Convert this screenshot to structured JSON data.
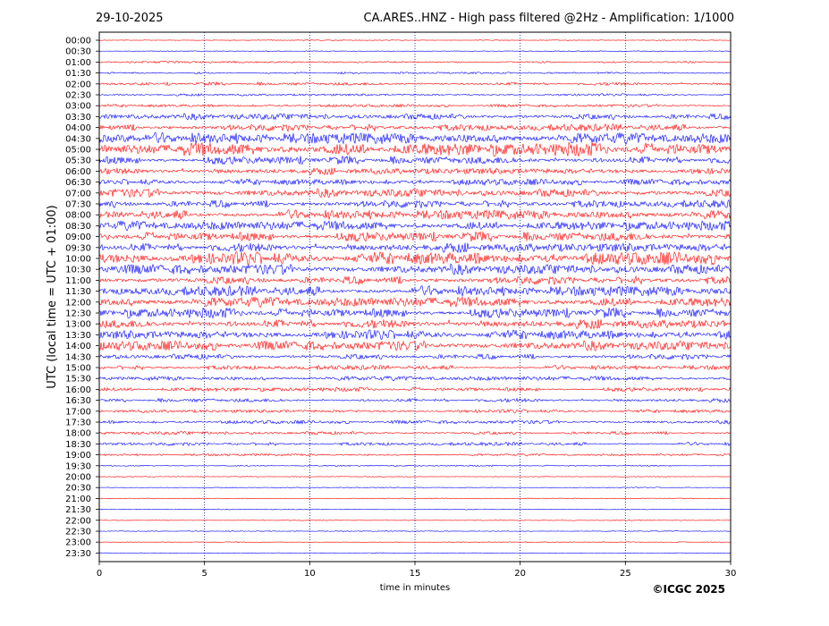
{
  "header": {
    "date": "29-10-2025",
    "title": "CA.ARES..HNZ - High pass filtered @2Hz - Amplification: 1/1000"
  },
  "footer": {
    "copyright": "©ICGC 2025"
  },
  "colors": {
    "trace_a": "#ff0000",
    "trace_b": "#0000ff",
    "grid": "#000080",
    "axis": "#000000"
  },
  "chart_data": {
    "type": "line",
    "xlabel": "time in minutes",
    "ylabel": "UTC (local time = UTC + 01:00)",
    "xlim": [
      0,
      30
    ],
    "x_ticks": [
      0,
      5,
      10,
      15,
      20,
      25,
      30
    ],
    "grid": "vertical dotted lines at every 5 minutes",
    "row_labels": [
      "00:00",
      "00:30",
      "01:00",
      "01:30",
      "02:00",
      "02:30",
      "03:00",
      "03:30",
      "04:00",
      "04:30",
      "05:00",
      "05:30",
      "06:00",
      "06:30",
      "07:00",
      "07:30",
      "08:00",
      "08:30",
      "09:00",
      "09:30",
      "10:00",
      "10:30",
      "11:00",
      "11:30",
      "12:00",
      "12:30",
      "13:00",
      "13:30",
      "14:00",
      "14:30",
      "15:00",
      "15:30",
      "16:00",
      "16:30",
      "17:00",
      "17:30",
      "18:00",
      "18:30",
      "19:00",
      "19:30",
      "20:00",
      "20:30",
      "21:00",
      "21:30",
      "22:00",
      "22:30",
      "23:00",
      "23:30"
    ],
    "row_colors": [
      "red",
      "blue",
      "red",
      "blue",
      "red",
      "blue",
      "red",
      "blue",
      "red",
      "blue",
      "red",
      "blue",
      "red",
      "blue",
      "red",
      "blue",
      "red",
      "blue",
      "red",
      "blue",
      "red",
      "blue",
      "red",
      "blue",
      "red",
      "blue",
      "red",
      "blue",
      "red",
      "blue",
      "red",
      "blue",
      "red",
      "blue",
      "red",
      "blue",
      "red",
      "blue",
      "red",
      "blue",
      "red",
      "blue",
      "red",
      "blue",
      "red",
      "blue",
      "red",
      "blue"
    ],
    "relative_amplitude": [
      0.3,
      0.3,
      0.7,
      0.7,
      1.2,
      0.8,
      1.0,
      2.2,
      2.5,
      4.0,
      5.0,
      3.0,
      2.4,
      2.2,
      3.0,
      2.8,
      3.4,
      3.4,
      3.6,
      3.4,
      4.6,
      3.6,
      3.0,
      3.6,
      3.6,
      3.6,
      3.4,
      3.4,
      3.4,
      2.0,
      1.6,
      1.6,
      1.5,
      1.4,
      1.2,
      1.2,
      1.2,
      1.2,
      0.8,
      0.5,
      0.3,
      0.3,
      0.3,
      0.3,
      0.3,
      0.3,
      0.3,
      0.3
    ]
  }
}
